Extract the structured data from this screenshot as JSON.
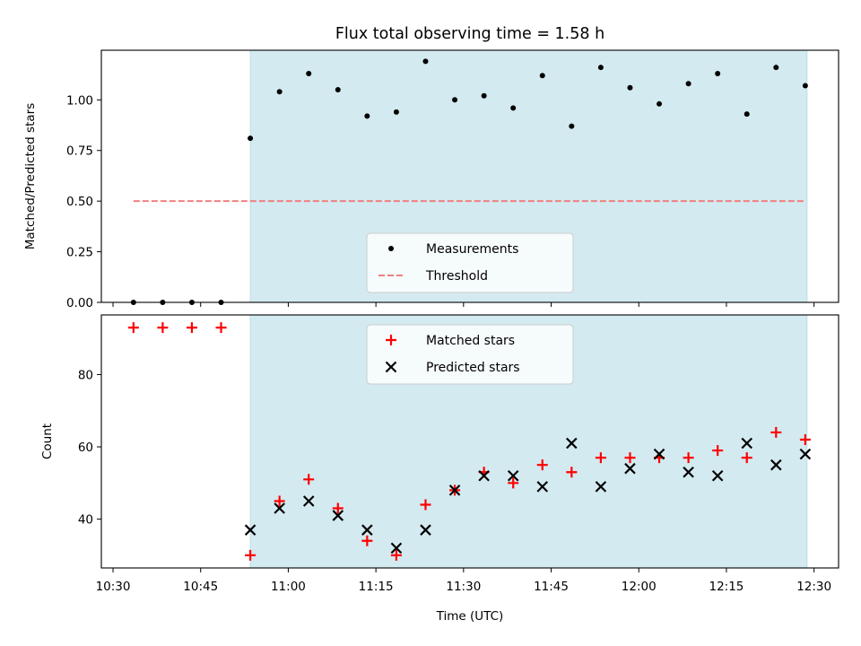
{
  "chart_data": {
    "title": "Flux total observing time = 1.58 h",
    "xlabel": "Time (UTC)",
    "x_tick_labels": [
      "10:30",
      "10:45",
      "11:00",
      "11:15",
      "11:30",
      "11:45",
      "12:00",
      "12:15",
      "12:30"
    ],
    "x_tick_minutes": [
      630,
      645,
      660,
      675,
      690,
      705,
      720,
      735,
      750
    ],
    "xlim_minutes": [
      628.0,
      754.2
    ],
    "observing_window_minutes": [
      653.5,
      748.8
    ],
    "shade_color": "#d3eaf0",
    "panels": [
      {
        "type": "scatter",
        "ylabel": "Matched/Predicted stars",
        "ylim": [
          0,
          1.245
        ],
        "y_ticks": [
          0.0,
          0.25,
          0.5,
          0.75,
          1.0
        ],
        "y_tick_labels": [
          "0.00",
          "0.25",
          "0.50",
          "0.75",
          "1.00"
        ],
        "legend_position": "bottom-center",
        "series": [
          {
            "name": "Measurements",
            "marker": "dot",
            "color": "#000000",
            "x": [
              633.5,
              638.5,
              643.5,
              648.5,
              653.5,
              658.5,
              663.5,
              668.5,
              673.5,
              678.5,
              683.5,
              688.5,
              693.5,
              698.5,
              703.5,
              708.5,
              713.5,
              718.5,
              723.5,
              728.5,
              733.5,
              738.5,
              743.5,
              748.5
            ],
            "y": [
              0.0,
              0.0,
              0.0,
              0.0,
              0.81,
              1.04,
              1.13,
              1.05,
              0.92,
              0.94,
              1.19,
              1.0,
              1.02,
              0.96,
              1.12,
              0.87,
              1.16,
              1.06,
              0.98,
              1.08,
              1.13,
              0.93,
              1.16,
              1.07
            ]
          },
          {
            "name": "Threshold",
            "marker": "dashed-line",
            "color": "#f08080",
            "x": [
              633.5,
              748.5
            ],
            "y": [
              0.5,
              0.5
            ]
          }
        ]
      },
      {
        "type": "scatter",
        "ylabel": "Count",
        "ylim": [
          26.5,
          96.5
        ],
        "y_ticks": [
          40,
          60,
          80
        ],
        "y_tick_labels": [
          "40",
          "60",
          "80"
        ],
        "legend_position": "top-center",
        "series": [
          {
            "name": "Matched stars",
            "marker": "plus",
            "color": "#ff0000",
            "x": [
              633.5,
              638.5,
              643.5,
              648.5,
              653.5,
              658.5,
              663.5,
              668.5,
              673.5,
              678.5,
              683.5,
              688.5,
              693.5,
              698.5,
              703.5,
              708.5,
              713.5,
              718.5,
              723.5,
              728.5,
              733.5,
              738.5,
              743.5,
              748.5
            ],
            "y": [
              93,
              93,
              93,
              93,
              30,
              45,
              51,
              43,
              34,
              30,
              44,
              48,
              53,
              50,
              55,
              53,
              57,
              57,
              57,
              57,
              59,
              57,
              64,
              62
            ]
          },
          {
            "name": "Predicted stars",
            "marker": "x",
            "color": "#000000",
            "x": [
              653.5,
              658.5,
              663.5,
              668.5,
              673.5,
              678.5,
              683.5,
              688.5,
              693.5,
              698.5,
              703.5,
              708.5,
              713.5,
              718.5,
              723.5,
              728.5,
              733.5,
              738.5,
              743.5,
              748.5
            ],
            "y": [
              37,
              43,
              45,
              41,
              37,
              32,
              37,
              48,
              52,
              52,
              49,
              61,
              49,
              54,
              58,
              53,
              52,
              61,
              55,
              58
            ]
          }
        ]
      }
    ]
  }
}
